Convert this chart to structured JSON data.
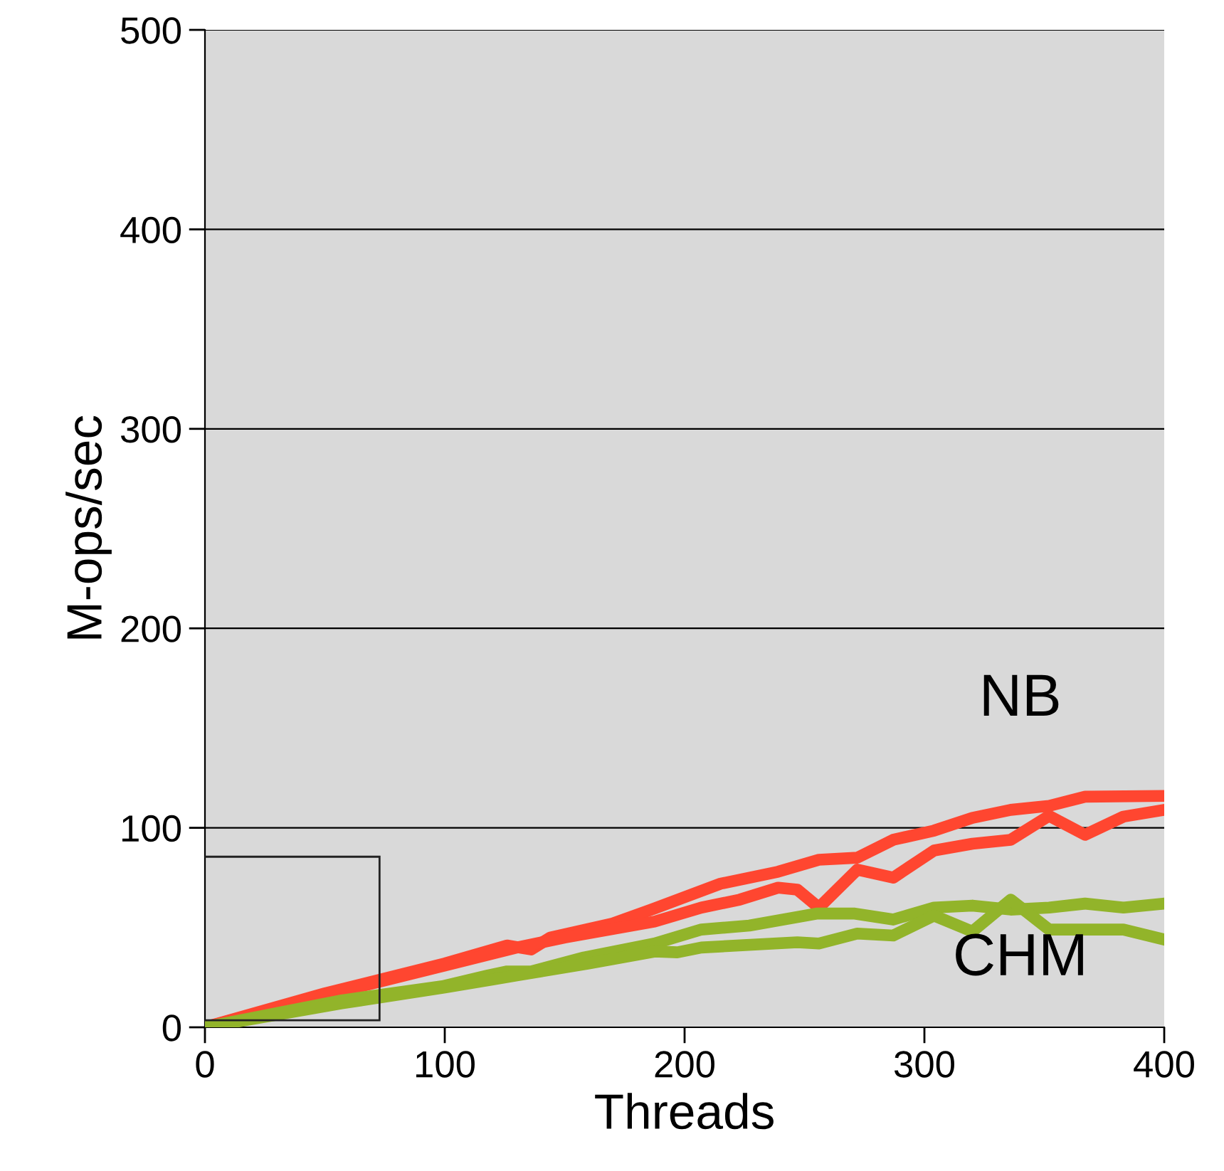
{
  "chart_data": {
    "type": "line",
    "xlabel": "Threads",
    "ylabel": "M-ops/sec",
    "xlim": [
      0,
      400
    ],
    "xticks": [
      0,
      100,
      200,
      300,
      400
    ],
    "ylim": [
      0,
      500
    ],
    "yticks": [
      0,
      100,
      200,
      300,
      400,
      500
    ],
    "grid": "y",
    "legend": false,
    "marker": "none",
    "line_style": "solid",
    "series": [
      {
        "name": "NB",
        "color": "#ff4630",
        "x": [
          0,
          50,
          100,
          126,
          136,
          144,
          170,
          187.5,
          215,
          239,
          256,
          272,
          287,
          304,
          320,
          336,
          352,
          367,
          400
        ],
        "values": [
          0,
          17,
          32,
          41,
          39,
          45,
          52,
          59.6,
          72,
          78,
          84,
          85,
          94,
          98.6,
          105,
          109,
          111,
          115.6,
          116
        ]
      },
      {
        "color": "#ff4630",
        "x": [
          0,
          50,
          100,
          130,
          150,
          187.5,
          207,
          223,
          239,
          247,
          256,
          272,
          287,
          304,
          320,
          336,
          352,
          367,
          383,
          400
        ],
        "values": [
          0,
          16,
          31,
          40,
          45,
          53,
          60,
          64,
          70,
          69,
          60,
          79,
          75,
          88.6,
          92,
          94,
          106,
          96.5,
          105.6,
          109
        ]
      },
      {
        "name": "CHM",
        "color": "#92b42a",
        "x": [
          0,
          57,
          99,
          118,
          126,
          136,
          158,
          187.5,
          207,
          227,
          255,
          271,
          287,
          304,
          320,
          336,
          352,
          367,
          383,
          400
        ],
        "values": [
          0,
          13.5,
          20.6,
          26,
          28,
          28,
          35,
          42,
          49,
          51,
          57,
          57,
          54,
          60,
          61,
          59,
          60,
          62,
          60,
          62
        ]
      },
      {
        "color": "#92b42a",
        "x": [
          0,
          57,
          100,
          120,
          130,
          160,
          187.5,
          197,
          207,
          247,
          256,
          272,
          287,
          304,
          320,
          336,
          352,
          383,
          400
        ],
        "values": [
          0,
          12,
          20,
          24,
          26,
          32,
          38,
          37.6,
          40,
          42.6,
          42,
          47,
          46,
          56,
          48,
          64,
          49,
          49,
          44
        ]
      }
    ]
  }
}
